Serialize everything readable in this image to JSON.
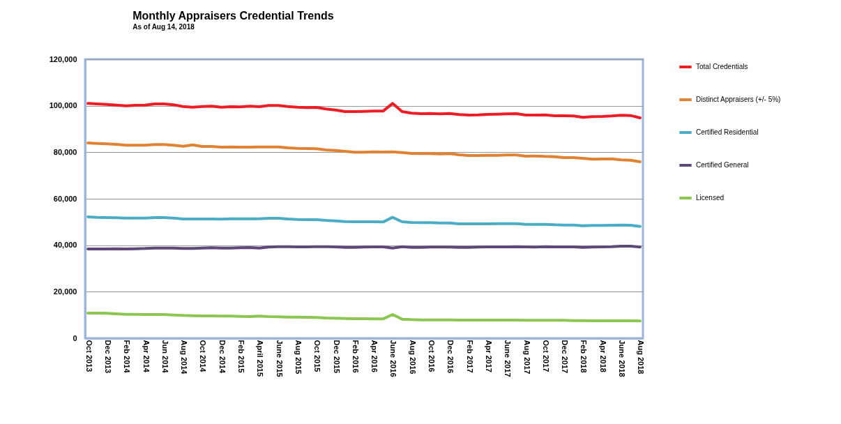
{
  "chart_data": {
    "type": "line",
    "title": "Monthly Appraisers Credential Trends",
    "subtitle": "As of Aug 14, 2018",
    "categories": [
      "Oct 2013",
      null,
      "Dec 2013",
      null,
      "Feb 2014",
      null,
      "Apr 2014",
      null,
      "Jun 2014",
      null,
      "Aug 2014",
      null,
      "Oct 2014",
      null,
      "Dec 2014",
      null,
      "Feb 2015",
      null,
      "April 2015",
      null,
      "June 2015",
      null,
      "Aug 2015",
      null,
      "Oct 2015",
      null,
      "Dec 2015",
      null,
      "Feb 2016",
      null,
      "Apr 2016",
      null,
      "June 2016",
      null,
      "Aug 2016",
      null,
      "Oct 2016",
      null,
      "Dec 2016",
      null,
      "Feb 2017",
      null,
      "Apr 2017",
      null,
      "June 2017",
      null,
      "Aug 2017",
      null,
      "Oct 2017",
      null,
      "Dec 2017",
      null,
      "Feb 2018",
      null,
      "Apr 2018",
      null,
      "June 2018",
      null,
      "Aug 2018"
    ],
    "series": [
      {
        "name": "Total Credentials",
        "color": "#ee1c25",
        "values": [
          101000,
          100800,
          100600,
          100300,
          100000,
          100200,
          100300,
          100800,
          100800,
          100400,
          99700,
          99400,
          99700,
          99800,
          99400,
          99600,
          99500,
          99800,
          99600,
          100100,
          100100,
          99700,
          99400,
          99200,
          99300,
          98600,
          98200,
          97500,
          97500,
          97600,
          97700,
          97700,
          101000,
          97500,
          96800,
          96600,
          96700,
          96500,
          96700,
          96200,
          96000,
          96100,
          96300,
          96400,
          96500,
          96600,
          96000,
          96000,
          96100,
          95700,
          95700,
          95600,
          95000,
          95300,
          95400,
          95600,
          95900,
          95800,
          94800
        ]
      },
      {
        "name": "Distinct Appraisers (+/- 5%)",
        "color": "#e08232",
        "values": [
          84000,
          83800,
          83600,
          83400,
          83000,
          83000,
          83000,
          83300,
          83300,
          83000,
          82600,
          83200,
          82500,
          82500,
          82200,
          82300,
          82200,
          82200,
          82300,
          82300,
          82300,
          81900,
          81700,
          81600,
          81500,
          81000,
          80800,
          80400,
          80000,
          80000,
          80200,
          80100,
          80200,
          79900,
          79500,
          79400,
          79400,
          79300,
          79400,
          78900,
          78600,
          78600,
          78700,
          78700,
          78800,
          78800,
          78300,
          78400,
          78200,
          78100,
          77700,
          77700,
          77400,
          77000,
          77100,
          77200,
          76700,
          76600,
          75900
        ]
      },
      {
        "name": "Certified Residential",
        "color": "#4bacc6",
        "values": [
          52200,
          52000,
          51900,
          51800,
          51700,
          51700,
          51700,
          51900,
          51900,
          51700,
          51300,
          51300,
          51300,
          51300,
          51200,
          51400,
          51400,
          51400,
          51400,
          51600,
          51600,
          51300,
          51100,
          51000,
          51000,
          50700,
          50500,
          50200,
          50100,
          50100,
          50100,
          50000,
          52000,
          50100,
          49800,
          49700,
          49700,
          49600,
          49600,
          49200,
          49200,
          49200,
          49200,
          49300,
          49300,
          49300,
          49000,
          49000,
          49000,
          48800,
          48700,
          48700,
          48400,
          48500,
          48500,
          48600,
          48700,
          48600,
          48100
        ]
      },
      {
        "name": "Certified General",
        "color": "#5f497a",
        "values": [
          38400,
          38400,
          38400,
          38500,
          38400,
          38500,
          38600,
          38800,
          38800,
          38800,
          38600,
          38600,
          38800,
          38900,
          38800,
          38800,
          38900,
          39000,
          38800,
          39200,
          39400,
          39400,
          39300,
          39300,
          39400,
          39400,
          39300,
          39100,
          39100,
          39200,
          39300,
          39300,
          38800,
          39400,
          39100,
          39100,
          39200,
          39200,
          39200,
          39100,
          39100,
          39200,
          39300,
          39300,
          39300,
          39400,
          39300,
          39200,
          39400,
          39300,
          39300,
          39300,
          39100,
          39200,
          39300,
          39400,
          39600,
          39600,
          39200
        ]
      },
      {
        "name": "Licensed",
        "color": "#8ac650",
        "values": [
          10800,
          10800,
          10700,
          10500,
          10300,
          10300,
          10200,
          10200,
          10200,
          10000,
          9800,
          9700,
          9600,
          9600,
          9500,
          9500,
          9400,
          9300,
          9500,
          9300,
          9200,
          9100,
          9100,
          9000,
          8900,
          8700,
          8600,
          8500,
          8400,
          8400,
          8300,
          8300,
          10200,
          8200,
          8000,
          7900,
          7900,
          7900,
          7900,
          7800,
          7800,
          7800,
          7800,
          7800,
          7800,
          7800,
          7700,
          7700,
          7700,
          7700,
          7700,
          7600,
          7600,
          7500,
          7500,
          7500,
          7500,
          7500,
          7400
        ]
      }
    ],
    "ylim": [
      0,
      120000
    ],
    "yticks": [
      0,
      {
        "value": 20000,
        "label": "20,000"
      },
      {
        "value": 40000,
        "label": "40,000"
      },
      {
        "value": 60000,
        "label": "60,000"
      },
      {
        "value": 80000,
        "label": "80,000"
      },
      {
        "value": 100000,
        "label": "100,000"
      },
      {
        "value": 120000,
        "label": "120,000"
      }
    ],
    "grid": "y",
    "legend": "right",
    "line_style": "solid",
    "marker": "none"
  }
}
